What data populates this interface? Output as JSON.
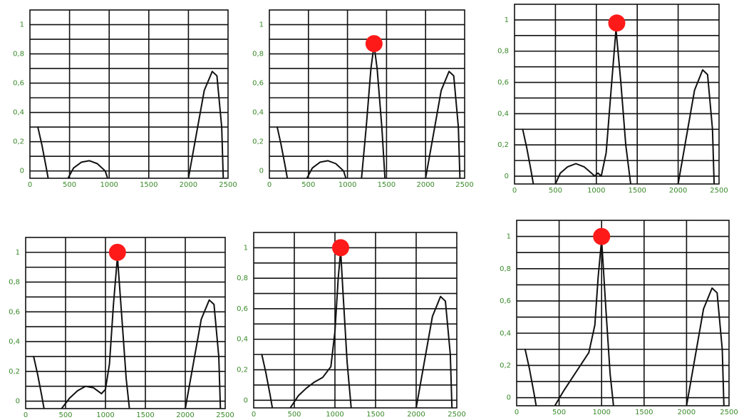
{
  "chart_data": [
    {
      "type": "line",
      "xlim": [
        0,
        2500
      ],
      "ylim": [
        -0.05,
        1.1
      ],
      "x_ticks": [
        "0",
        "500",
        "1000",
        "1500",
        "2000",
        "2500"
      ],
      "y_ticks": [
        "0",
        "0,2",
        "0,4",
        "0,6",
        "0,8",
        "1"
      ],
      "grid": true,
      "marker": null,
      "series": [
        {
          "x": [
            100,
            150,
            200,
            230
          ],
          "y": [
            0.3,
            0.18,
            0.04,
            -0.05
          ]
        },
        {
          "x": [
            480,
            550,
            650,
            750,
            850,
            950,
            980
          ],
          "y": [
            -0.05,
            0.02,
            0.06,
            0.07,
            0.05,
            0.0,
            -0.05
          ]
        },
        {
          "x": [
            2000,
            2100,
            2200,
            2300,
            2360,
            2420,
            2440
          ],
          "y": [
            -0.05,
            0.25,
            0.55,
            0.68,
            0.65,
            0.3,
            -0.05
          ]
        }
      ]
    },
    {
      "type": "line",
      "xlim": [
        0,
        2500
      ],
      "ylim": [
        -0.05,
        1.1
      ],
      "x_ticks": [
        "0",
        "500",
        "1000",
        "1500",
        "2000",
        "2500"
      ],
      "y_ticks": [
        "0",
        "0,2",
        "0,4",
        "0,6",
        "0,8",
        "1"
      ],
      "grid": true,
      "marker": {
        "x": 1340,
        "y": 0.87
      },
      "series": [
        {
          "x": [
            100,
            150,
            200,
            230
          ],
          "y": [
            0.3,
            0.18,
            0.04,
            -0.05
          ]
        },
        {
          "x": [
            480,
            550,
            650,
            750,
            850,
            950,
            980
          ],
          "y": [
            -0.05,
            0.02,
            0.06,
            0.07,
            0.05,
            0.0,
            -0.05
          ]
        },
        {
          "x": [
            1180,
            1240,
            1300,
            1340,
            1380,
            1440,
            1480
          ],
          "y": [
            -0.05,
            0.3,
            0.7,
            0.86,
            0.7,
            0.3,
            -0.05
          ]
        },
        {
          "x": [
            2000,
            2100,
            2200,
            2300,
            2360,
            2420,
            2440
          ],
          "y": [
            -0.05,
            0.25,
            0.55,
            0.68,
            0.65,
            0.3,
            -0.05
          ]
        }
      ]
    },
    {
      "type": "line",
      "xlim": [
        0,
        2500
      ],
      "ylim": [
        -0.05,
        1.1
      ],
      "x_ticks": [
        "0",
        "500",
        "1000",
        "1500",
        "2000",
        "2500"
      ],
      "y_ticks": [
        "0",
        "0,2",
        "0,4",
        "0,6",
        "0,8",
        "1"
      ],
      "grid": true,
      "marker": {
        "x": 1250,
        "y": 0.98
      },
      "series": [
        {
          "x": [
            100,
            150,
            200,
            230
          ],
          "y": [
            0.3,
            0.18,
            0.04,
            -0.05
          ]
        },
        {
          "x": [
            500,
            560,
            650,
            750,
            850,
            940,
            980,
            1020,
            1060,
            1120,
            1180,
            1240,
            1300,
            1360,
            1420
          ],
          "y": [
            -0.05,
            0.02,
            0.06,
            0.08,
            0.06,
            0.02,
            0.0,
            0.02,
            0.0,
            0.15,
            0.55,
            0.94,
            0.6,
            0.2,
            -0.05
          ]
        },
        {
          "x": [
            2000,
            2100,
            2200,
            2300,
            2360,
            2420,
            2440
          ],
          "y": [
            -0.05,
            0.25,
            0.55,
            0.68,
            0.65,
            0.3,
            -0.05
          ]
        }
      ]
    },
    {
      "type": "line",
      "xlim": [
        0,
        2500
      ],
      "ylim": [
        -0.05,
        1.1
      ],
      "x_ticks": [
        "0",
        "500",
        "1000",
        "1500",
        "2000",
        "2500"
      ],
      "y_ticks": [
        "0",
        "0,2",
        "0,4",
        "0,6",
        "0,8",
        "1"
      ],
      "grid": true,
      "marker": {
        "x": 1150,
        "y": 1.0
      },
      "series": [
        {
          "x": [
            100,
            150,
            200,
            230
          ],
          "y": [
            0.3,
            0.18,
            0.04,
            -0.05
          ]
        },
        {
          "x": [
            450,
            550,
            650,
            750,
            850,
            950,
            1000,
            1050,
            1100,
            1150,
            1200,
            1260,
            1300
          ],
          "y": [
            -0.05,
            0.02,
            0.07,
            0.1,
            0.09,
            0.05,
            0.08,
            0.25,
            0.65,
            0.97,
            0.6,
            0.15,
            -0.05
          ]
        },
        {
          "x": [
            2000,
            2100,
            2200,
            2300,
            2360,
            2420,
            2440
          ],
          "y": [
            -0.05,
            0.25,
            0.55,
            0.68,
            0.65,
            0.3,
            -0.05
          ]
        }
      ]
    },
    {
      "type": "line",
      "xlim": [
        0,
        2500
      ],
      "ylim": [
        -0.05,
        1.1
      ],
      "x_ticks": [
        "0",
        "500",
        "1000",
        "1500",
        "2000",
        "2500"
      ],
      "y_ticks": [
        "0",
        "0,2",
        "0,4",
        "0,6",
        "0,8",
        "1"
      ],
      "grid": true,
      "marker": {
        "x": 1070,
        "y": 1.0
      },
      "series": [
        {
          "x": [
            100,
            150,
            200,
            230
          ],
          "y": [
            0.3,
            0.18,
            0.04,
            -0.05
          ]
        },
        {
          "x": [
            450,
            550,
            650,
            750,
            850,
            950,
            1000,
            1040,
            1070,
            1100,
            1150,
            1200
          ],
          "y": [
            -0.05,
            0.03,
            0.08,
            0.12,
            0.15,
            0.22,
            0.45,
            0.8,
            0.98,
            0.7,
            0.25,
            -0.05
          ]
        },
        {
          "x": [
            2000,
            2100,
            2200,
            2300,
            2360,
            2420,
            2440
          ],
          "y": [
            -0.05,
            0.25,
            0.55,
            0.68,
            0.65,
            0.3,
            -0.05
          ]
        }
      ]
    },
    {
      "type": "line",
      "xlim": [
        0,
        2500
      ],
      "ylim": [
        -0.05,
        1.1
      ],
      "x_ticks": [
        "0",
        "500",
        "1000",
        "1500",
        "2000",
        "2500"
      ],
      "y_ticks": [
        "0",
        "0,2",
        "0,4",
        "0,6",
        "0,8",
        "1"
      ],
      "grid": true,
      "marker": {
        "x": 1000,
        "y": 1.0
      },
      "series": [
        {
          "x": [
            100,
            150,
            200,
            230
          ],
          "y": [
            0.3,
            0.18,
            0.04,
            -0.05
          ]
        },
        {
          "x": [
            450,
            550,
            650,
            750,
            850,
            920,
            960,
            1000,
            1050,
            1100,
            1140
          ],
          "y": [
            -0.05,
            0.04,
            0.12,
            0.2,
            0.28,
            0.45,
            0.75,
            0.98,
            0.55,
            0.15,
            -0.05
          ]
        },
        {
          "x": [
            2000,
            2100,
            2200,
            2300,
            2360,
            2420,
            2440
          ],
          "y": [
            -0.05,
            0.25,
            0.55,
            0.68,
            0.65,
            0.3,
            -0.05
          ]
        }
      ]
    }
  ],
  "colors": {
    "marker": "#ff1a1a",
    "tick_label": "#3a8a2a",
    "line": "#111111"
  }
}
